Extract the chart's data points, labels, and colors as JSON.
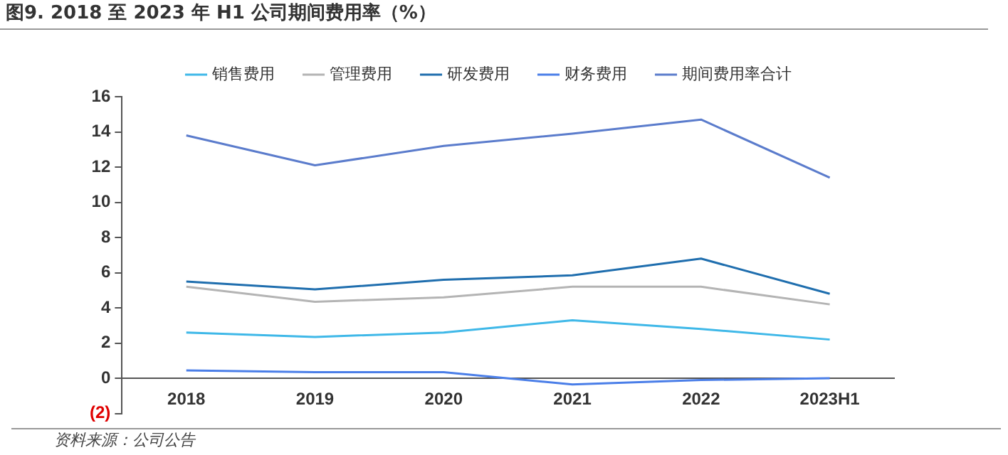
{
  "chart_data": {
    "type": "line",
    "title": "图9. 2018 至 2023 年 H1 公司期间费用率（%）",
    "categories": [
      "2018",
      "2019",
      "2020",
      "2021",
      "2022",
      "2023H1"
    ],
    "series": [
      {
        "name": "销售费用",
        "color": "#3fb8e8",
        "values": [
          2.6,
          2.35,
          2.6,
          3.3,
          2.8,
          2.2
        ]
      },
      {
        "name": "管理费用",
        "color": "#b4b4b4",
        "values": [
          5.2,
          4.35,
          4.6,
          5.2,
          5.2,
          4.2
        ]
      },
      {
        "name": "研发费用",
        "color": "#1f6eae",
        "values": [
          5.5,
          5.05,
          5.6,
          5.85,
          6.8,
          4.8
        ]
      },
      {
        "name": "财务费用",
        "color": "#4a7ee8",
        "values": [
          0.45,
          0.35,
          0.35,
          -0.35,
          -0.1,
          0.0
        ]
      },
      {
        "name": "期间费用率合计",
        "color": "#5b7ccc",
        "values": [
          13.8,
          12.1,
          13.2,
          13.9,
          14.7,
          11.4
        ]
      }
    ],
    "ylim": [
      -2,
      16
    ],
    "yticks": [
      {
        "value": -2,
        "label": "(2)"
      },
      0,
      2,
      4,
      6,
      8,
      10,
      12,
      14,
      16
    ],
    "grid": false,
    "legend": "top",
    "marker": "none",
    "line_style": "solid",
    "annotations": [
      "资料来源：公司公告"
    ]
  }
}
